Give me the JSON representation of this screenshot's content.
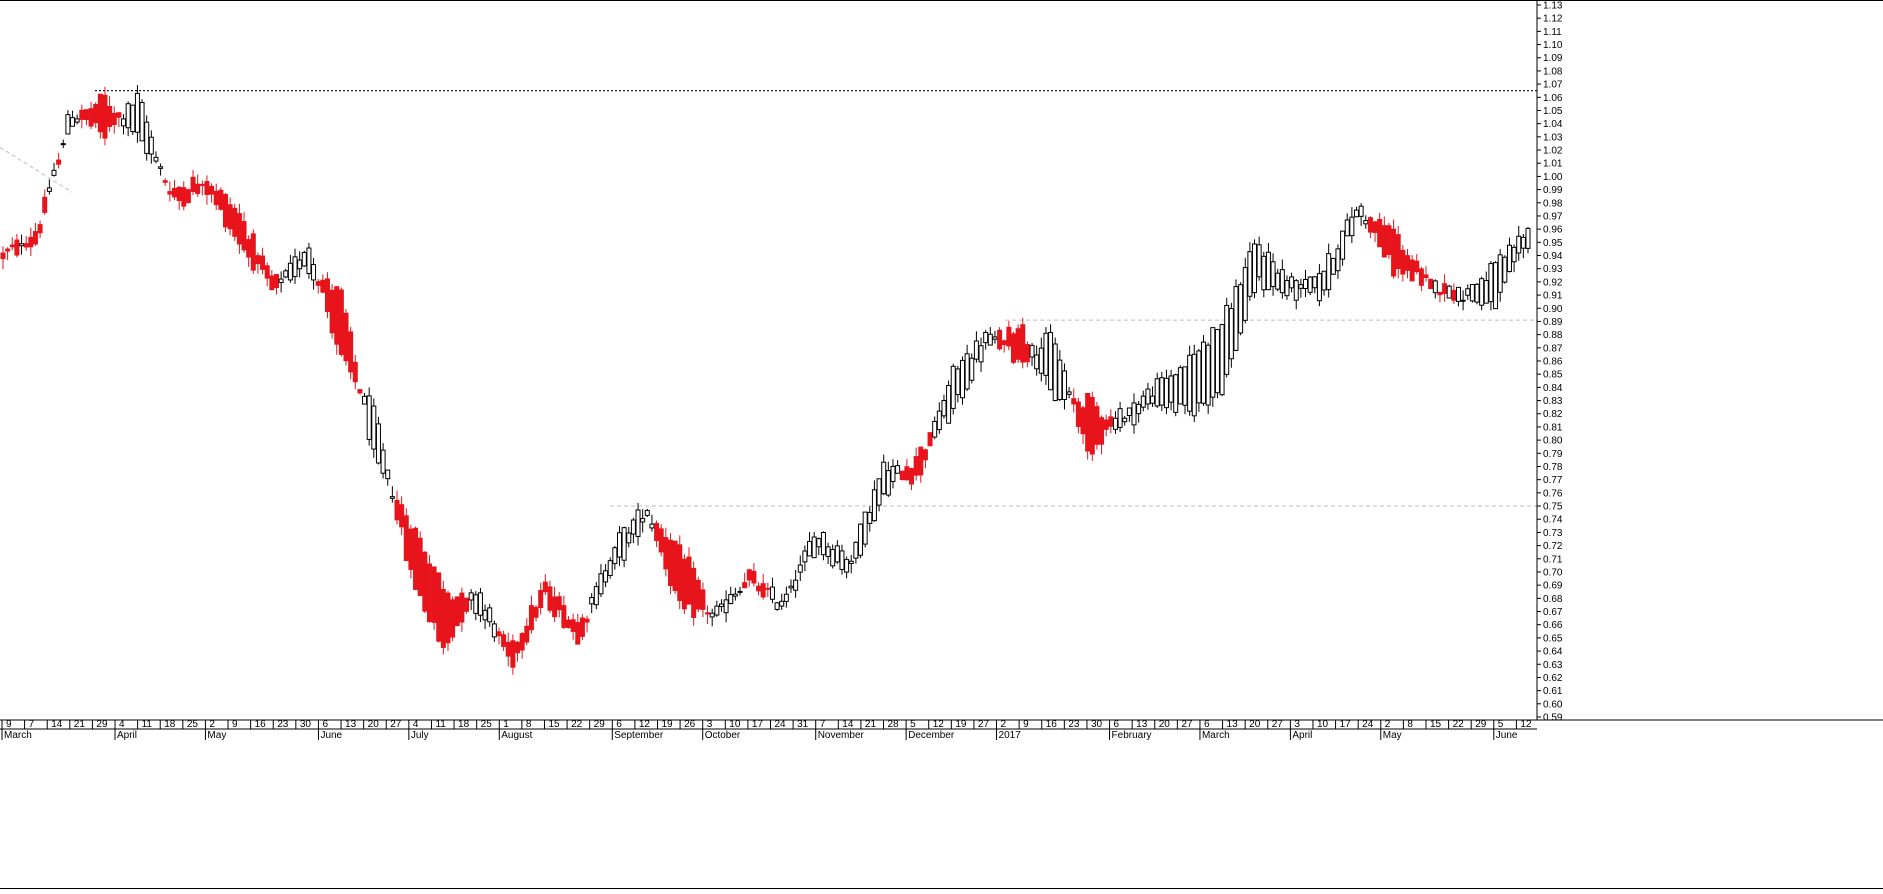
{
  "chart_data": {
    "type": "candlestick",
    "title": "",
    "xlabel": "",
    "ylabel": "",
    "ylim": [
      0.59,
      1.13
    ],
    "y_ticks": [
      "1.13",
      "1.12",
      "1.11",
      "1.10",
      "1.09",
      "1.08",
      "1.07",
      "1.06",
      "1.05",
      "1.04",
      "1.03",
      "1.02",
      "1.01",
      "1.00",
      "0.99",
      "0.98",
      "0.97",
      "0.96",
      "0.95",
      "0.94",
      "0.93",
      "0.92",
      "0.91",
      "0.90",
      "0.89",
      "0.88",
      "0.87",
      "0.86",
      "0.85",
      "0.84",
      "0.83",
      "0.82",
      "0.81",
      "0.80",
      "0.79",
      "0.78",
      "0.77",
      "0.76",
      "0.75",
      "0.74",
      "0.73",
      "0.72",
      "0.71",
      "0.70",
      "0.69",
      "0.68",
      "0.67",
      "0.66",
      "0.65",
      "0.64",
      "0.63",
      "0.62",
      "0.61",
      "0.60",
      "0.59"
    ],
    "x_day_ticks": [
      "9",
      "7",
      "14",
      "21",
      "29",
      "4",
      "11",
      "18",
      "25",
      "2",
      "9",
      "16",
      "23",
      "30",
      "6",
      "13",
      "20",
      "27",
      "4",
      "11",
      "18",
      "25",
      "1",
      "8",
      "15",
      "22",
      "29",
      "6",
      "12",
      "19",
      "26",
      "3",
      "10",
      "17",
      "24",
      "31",
      "7",
      "14",
      "21",
      "28",
      "5",
      "12",
      "19",
      "27",
      "2",
      "9",
      "16",
      "23",
      "30",
      "6",
      "13",
      "20",
      "27",
      "6",
      "13",
      "20",
      "27",
      "3",
      "10",
      "17",
      "24",
      "2",
      "8",
      "15",
      "22",
      "29",
      "5",
      "12"
    ],
    "x_month_labels": [
      "March",
      "April",
      "May",
      "June",
      "July",
      "August",
      "September",
      "October",
      "November",
      "December",
      "2017",
      "February",
      "March",
      "April",
      "May",
      "June"
    ],
    "reference_lines": [
      {
        "value": 1.065,
        "style": "dotted-dark"
      },
      {
        "value": 0.891,
        "style": "dashed-light"
      },
      {
        "value": 0.75,
        "style": "dashed-light"
      }
    ],
    "up_color": "#ffffff",
    "down_color": "#e8141c",
    "waypoints": [
      {
        "x": 0.94,
        "y": 0.94
      },
      {
        "x": 0.96,
        "y": 0.95
      },
      {
        "x": 1.04,
        "y": 1.05
      },
      {
        "x": 1.06,
        "y": 1.03
      },
      {
        "x": 1.03,
        "y": 1.06
      },
      {
        "x": 0.99,
        "y": 0.98
      },
      {
        "x": 1.0,
        "y": 0.99
      },
      {
        "x": 0.97,
        "y": 0.95
      },
      {
        "x": 0.92,
        "y": 0.91
      },
      {
        "x": 0.93,
        "y": 0.95
      },
      {
        "x": 0.91,
        "y": 0.86
      },
      {
        "x": 0.78,
        "y": 0.82
      },
      {
        "x": 0.74,
        "y": 0.7
      },
      {
        "x": 0.69,
        "y": 0.64
      },
      {
        "x": 0.67,
        "y": 0.69
      },
      {
        "x": 0.64,
        "y": 0.63
      },
      {
        "x": 0.69,
        "y": 0.68
      },
      {
        "x": 0.66,
        "y": 0.65
      },
      {
        "x": 0.7,
        "y": 0.72
      },
      {
        "x": 0.74,
        "y": 0.75
      },
      {
        "x": 0.72,
        "y": 0.67
      },
      {
        "x": 0.66,
        "y": 0.67
      },
      {
        "x": 0.7,
        "y": 0.69
      },
      {
        "x": 0.67,
        "y": 0.68
      },
      {
        "x": 0.72,
        "y": 0.73
      },
      {
        "x": 0.7,
        "y": 0.71
      },
      {
        "x": 0.76,
        "y": 0.78
      },
      {
        "x": 0.79,
        "y": 0.77
      },
      {
        "x": 0.82,
        "y": 0.85
      },
      {
        "x": 0.87,
        "y": 0.88
      },
      {
        "x": 0.89,
        "y": 0.86
      },
      {
        "x": 0.83,
        "y": 0.88
      },
      {
        "x": 0.83,
        "y": 0.79
      },
      {
        "x": 0.81,
        "y": 0.82
      },
      {
        "x": 0.83,
        "y": 0.84
      },
      {
        "x": 0.82,
        "y": 0.86
      },
      {
        "x": 0.84,
        "y": 0.89
      },
      {
        "x": 0.92,
        "y": 0.95
      },
      {
        "x": 0.91,
        "y": 0.92
      },
      {
        "x": 0.91,
        "y": 0.93
      },
      {
        "x": 0.97,
        "y": 0.98
      },
      {
        "x": 0.96,
        "y": 0.93
      },
      {
        "x": 0.92,
        "y": 0.92
      },
      {
        "x": 0.91,
        "y": 0.91
      },
      {
        "x": 0.9,
        "y": 0.93
      },
      {
        "x": 0.95,
        "y": 0.96
      }
    ]
  }
}
